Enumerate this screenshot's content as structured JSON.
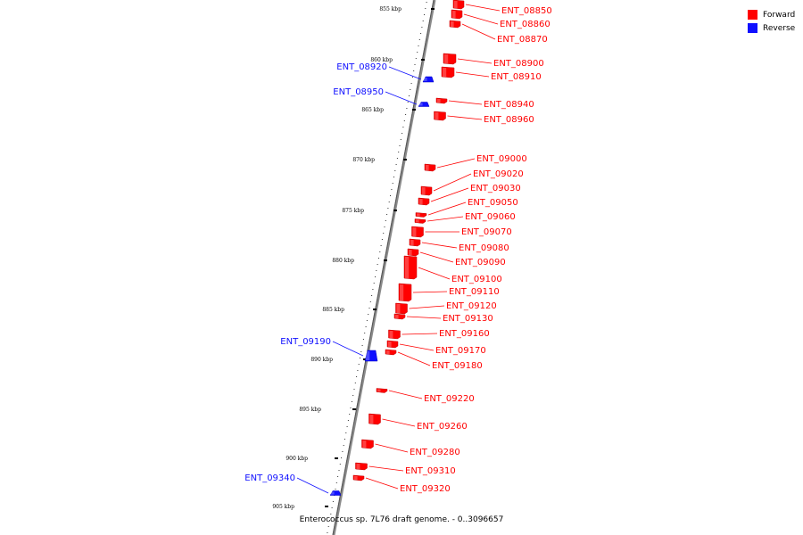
{
  "caption": "Enterococcus sp. 7L76 draft genome. - 0..3096657",
  "legend": {
    "forward": {
      "label": "Forward",
      "color": "#ff0000"
    },
    "reverse": {
      "label": "Reverse",
      "color": "#1010ff"
    }
  },
  "ticks": [
    "855 kbp",
    "860 kbp",
    "865 kbp",
    "870 kbp",
    "875 kbp",
    "880 kbp",
    "885 kbp",
    "890 kbp",
    "895 kbp",
    "900 kbp",
    "905 kbp"
  ],
  "genes": [
    {
      "name": "ENT_08850",
      "strand": "forward"
    },
    {
      "name": "ENT_08860",
      "strand": "forward"
    },
    {
      "name": "ENT_08870",
      "strand": "forward"
    },
    {
      "name": "ENT_08900",
      "strand": "forward"
    },
    {
      "name": "ENT_08910",
      "strand": "forward"
    },
    {
      "name": "ENT_08920",
      "strand": "reverse"
    },
    {
      "name": "ENT_08940",
      "strand": "forward"
    },
    {
      "name": "ENT_08950",
      "strand": "reverse"
    },
    {
      "name": "ENT_08960",
      "strand": "forward"
    },
    {
      "name": "ENT_09000",
      "strand": "forward"
    },
    {
      "name": "ENT_09020",
      "strand": "forward"
    },
    {
      "name": "ENT_09030",
      "strand": "forward"
    },
    {
      "name": "ENT_09050",
      "strand": "forward"
    },
    {
      "name": "ENT_09060",
      "strand": "forward"
    },
    {
      "name": "ENT_09070",
      "strand": "forward"
    },
    {
      "name": "ENT_09080",
      "strand": "forward"
    },
    {
      "name": "ENT_09090",
      "strand": "forward"
    },
    {
      "name": "ENT_09100",
      "strand": "forward"
    },
    {
      "name": "ENT_09110",
      "strand": "forward"
    },
    {
      "name": "ENT_09120",
      "strand": "forward"
    },
    {
      "name": "ENT_09130",
      "strand": "forward"
    },
    {
      "name": "ENT_09160",
      "strand": "forward"
    },
    {
      "name": "ENT_09170",
      "strand": "forward"
    },
    {
      "name": "ENT_09180",
      "strand": "forward"
    },
    {
      "name": "ENT_09190",
      "strand": "reverse"
    },
    {
      "name": "ENT_09220",
      "strand": "forward"
    },
    {
      "name": "ENT_09260",
      "strand": "forward"
    },
    {
      "name": "ENT_09280",
      "strand": "forward"
    },
    {
      "name": "ENT_09310",
      "strand": "forward"
    },
    {
      "name": "ENT_09320",
      "strand": "forward"
    },
    {
      "name": "ENT_09340",
      "strand": "reverse"
    }
  ]
}
